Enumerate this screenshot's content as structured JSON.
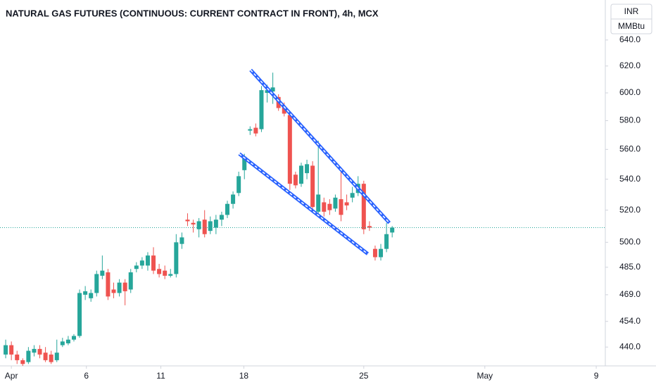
{
  "chart_data": {
    "type": "candlestick",
    "title": "NATURAL GAS FUTURES (CONTINUOUS: CURRENT CONTRACT IN FRONT), 4h, MCX",
    "currency": "INR",
    "unit": "MMBtu",
    "log_y": true,
    "up_color": "#26a69a",
    "down_color": "#ef5350",
    "trend_color": "#2962ff",
    "x": [
      0,
      1,
      2,
      3,
      4,
      5,
      6,
      7,
      8,
      9,
      10,
      11,
      12,
      13,
      14,
      15,
      16,
      17,
      18,
      19,
      20,
      21,
      22,
      23,
      24,
      25,
      26,
      27,
      28,
      29,
      30,
      31,
      32,
      33,
      34,
      35,
      36,
      37,
      38,
      39,
      40,
      41,
      42,
      43,
      44,
      45,
      46,
      47,
      48,
      49,
      50,
      51,
      52,
      53,
      54,
      55,
      56,
      57,
      58,
      59,
      60,
      61,
      62,
      63,
      64,
      65,
      66,
      67,
      68
    ],
    "open": [
      436,
      441,
      436,
      433,
      432,
      437,
      439,
      437,
      436,
      433,
      441,
      442,
      444,
      446,
      469,
      467,
      470,
      480,
      482,
      472,
      470,
      476,
      472,
      484,
      486,
      486,
      492,
      484,
      483,
      480,
      481,
      499,
      514,
      512,
      508,
      514,
      507,
      509,
      514,
      517,
      524,
      531,
      546,
      573,
      575,
      574,
      600,
      601,
      597,
      590,
      584,
      543,
      537,
      544,
      549,
      519,
      525,
      524,
      521,
      527,
      525,
      528,
      531,
      537,
      510,
      496,
      491,
      496,
      506
    ],
    "high": [
      444,
      443,
      438,
      434,
      440,
      441,
      441,
      440,
      438,
      444,
      445,
      446,
      447,
      472,
      474,
      472,
      483,
      492,
      484,
      476,
      478,
      478,
      484,
      488,
      491,
      494,
      497,
      487,
      486,
      484,
      505,
      506,
      518,
      514,
      515,
      520,
      516,
      517,
      519,
      526,
      532,
      545,
      557,
      576,
      578,
      605,
      606,
      615,
      599,
      593,
      586,
      545,
      551,
      553,
      552,
      566,
      528,
      527,
      530,
      545,
      530,
      535,
      542,
      539,
      513,
      498,
      499,
      512,
      510
    ],
    "low": [
      434,
      433,
      431,
      430,
      431,
      435,
      434,
      432,
      431,
      432,
      440,
      441,
      443,
      445,
      466,
      465,
      468,
      478,
      466,
      467,
      468,
      463,
      470,
      482,
      484,
      483,
      481,
      479,
      478,
      479,
      479,
      496,
      510,
      506,
      503,
      503,
      505,
      505,
      510,
      515,
      521,
      529,
      540,
      570,
      569,
      572,
      593,
      592,
      587,
      583,
      533,
      534,
      535,
      540,
      520,
      517,
      516,
      517,
      519,
      513,
      520,
      525,
      529,
      505,
      507,
      489,
      489,
      494,
      503
    ],
    "close": [
      441,
      436,
      433,
      431,
      438,
      439,
      436,
      433,
      432,
      437,
      443,
      444,
      446,
      470,
      471,
      470,
      481,
      483,
      468,
      470,
      476,
      471,
      482,
      486,
      489,
      492,
      483,
      481,
      480,
      481,
      500,
      503,
      513,
      511,
      513,
      505,
      513,
      514,
      517,
      524,
      530,
      542,
      555,
      574,
      571,
      602,
      602,
      604,
      589,
      585,
      537,
      536,
      549,
      550,
      522,
      530,
      519,
      520,
      528,
      517,
      523,
      531,
      537,
      508,
      509,
      491,
      496,
      505,
      509
    ],
    "trendlines": [
      {
        "x": [
          43.1,
          67.5
        ],
        "values": [
          617,
          512
        ]
      },
      {
        "x": [
          41.1,
          63.7
        ],
        "values": [
          557,
          493
        ]
      }
    ],
    "xlim": [
      -1,
      105.5
    ],
    "xticks": [
      {
        "value": 1,
        "label": "Apr"
      },
      {
        "value": 14.2,
        "label": "6"
      },
      {
        "value": 27.3,
        "label": "11"
      },
      {
        "value": 41.9,
        "label": "18"
      },
      {
        "value": 63,
        "label": "25"
      },
      {
        "value": 84.3,
        "label": "May"
      },
      {
        "value": 103.9,
        "label": "9"
      }
    ],
    "ylim": [
      430,
      672
    ],
    "yticks": [
      {
        "value": 440,
        "label": "440.0"
      },
      {
        "value": 454,
        "label": "454.0"
      },
      {
        "value": 469,
        "label": "469.0"
      },
      {
        "value": 485,
        "label": "485.0"
      },
      {
        "value": 500,
        "label": "500.0"
      },
      {
        "value": 520,
        "label": "520.0"
      },
      {
        "value": 540,
        "label": "540.0"
      },
      {
        "value": 560,
        "label": "560.0"
      },
      {
        "value": 580,
        "label": "580.0"
      },
      {
        "value": 600,
        "label": "600.0"
      },
      {
        "value": 620,
        "label": "620.0"
      },
      {
        "value": 640,
        "label": "640.0"
      }
    ]
  }
}
